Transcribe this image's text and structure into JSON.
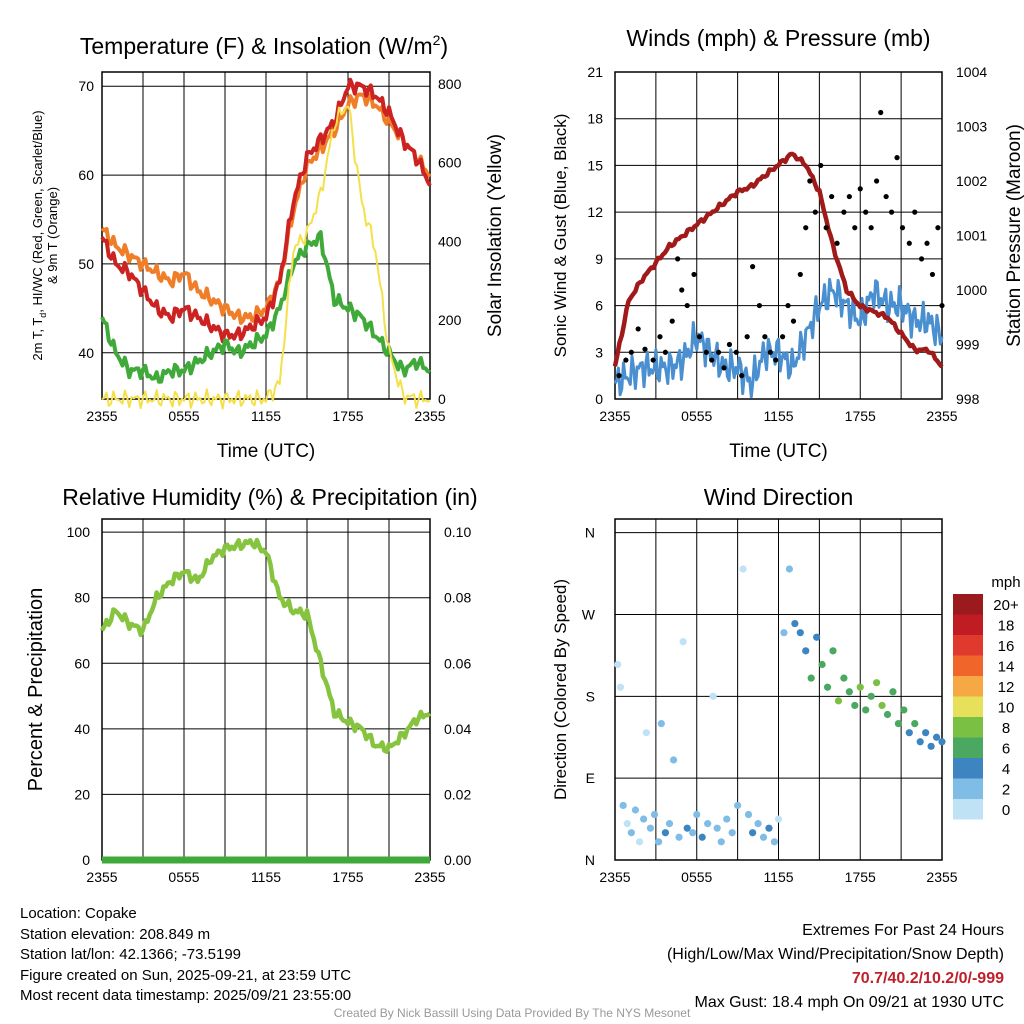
{
  "colors": {
    "temp": "#cc2222",
    "temp9m": "#f07d28",
    "dewpoint": "#3faa3a",
    "solar": "#f5e04a",
    "wind": "#4a90d0",
    "gust": "#000000",
    "pressure": "#a01a1a",
    "rh": "#86c440",
    "precip": "#3faa3a"
  },
  "x_ticks": [
    "2355",
    "0555",
    "1155",
    "1755",
    "2355"
  ],
  "chart_data": [
    {
      "type": "line",
      "id": "temp",
      "title": "Temperature (F) & Insolation (W/m",
      "title_sup": "2",
      "title_end": ")",
      "xlabel": "Time (UTC)",
      "ylabel_line1": "2m T, T",
      "ylabel_sub": "d",
      "ylabel_line1b": ", HI/WC (Red, Green, Scarlet/Blue)",
      "ylabel_line2": "& 9m T (Orange)",
      "y2label": "Solar Insolation (Yellow)",
      "xlim": [
        0,
        24
      ],
      "ylim": [
        34.8,
        71.6
      ],
      "y2lim": [
        0,
        830
      ],
      "yticks": [
        40,
        50,
        60,
        70
      ],
      "y2ticks": [
        0,
        200,
        400,
        600,
        800
      ],
      "series": [
        {
          "name": "9m T",
          "color_key": "temp9m",
          "axis": "y",
          "values": [
            54,
            52,
            51,
            50,
            49,
            48,
            49,
            47,
            46,
            45,
            44,
            44,
            45,
            48,
            56,
            61,
            63,
            65,
            68,
            69,
            68,
            66,
            64,
            62,
            60
          ]
        },
        {
          "name": "2m T",
          "color_key": "temp",
          "axis": "y",
          "values": [
            53,
            50,
            49,
            47,
            45,
            44,
            45,
            44,
            43,
            42,
            42,
            43,
            44,
            48,
            57,
            62,
            64,
            66,
            70,
            70,
            69,
            67,
            64,
            62,
            59
          ]
        },
        {
          "name": "Dewpoint",
          "color_key": "dewpoint",
          "axis": "y",
          "values": [
            44,
            40,
            38,
            38,
            37,
            38,
            38,
            39,
            40,
            41,
            40,
            41,
            42,
            45,
            50,
            52,
            53,
            46,
            45,
            44,
            42,
            40,
            38,
            39,
            38
          ]
        },
        {
          "name": "Solar Insolation",
          "color_key": "solar",
          "axis": "y2",
          "values": [
            0,
            0,
            0,
            0,
            0,
            0,
            0,
            0,
            0,
            0,
            0,
            0,
            0,
            40,
            380,
            420,
            520,
            700,
            750,
            500,
            380,
            120,
            10,
            0,
            0
          ]
        }
      ]
    },
    {
      "type": "line",
      "id": "wind",
      "title": "Winds (mph) & Pressure (mb)",
      "xlabel": "Time (UTC)",
      "ylabel": "Sonic Wind & Gust (Blue, Black)",
      "y2label": "Station Pressure (Maroon)",
      "xlim": [
        0,
        24
      ],
      "ylim": [
        0,
        21
      ],
      "y2lim": [
        998,
        1004
      ],
      "yticks": [
        0,
        3,
        6,
        9,
        12,
        15,
        18,
        21
      ],
      "y2ticks": [
        998,
        999,
        1000,
        1001,
        1002,
        1003,
        1004
      ],
      "series": [
        {
          "name": "Wind Speed",
          "color_key": "wind",
          "axis": "y",
          "values": [
            1,
            1.5,
            2,
            2,
            2,
            2.5,
            4,
            3,
            2,
            2,
            1,
            3,
            3,
            2,
            4,
            6,
            7,
            6,
            5,
            7,
            6,
            6,
            5,
            5,
            4
          ]
        },
        {
          "name": "Pressure",
          "color_key": "pressure",
          "axis": "y2",
          "values": [
            998.6,
            999.8,
            1000.2,
            1000.5,
            1000.8,
            1001.0,
            1001.2,
            1001.4,
            1001.6,
            1001.8,
            1001.9,
            1002.1,
            1002.3,
            1002.5,
            1002.3,
            1001.8,
            1000.8,
            1000.0,
            999.7,
            999.6,
            999.5,
            999.2,
            998.9,
            998.9,
            998.6
          ]
        }
      ],
      "gusts": [
        [
          0.3,
          1.5
        ],
        [
          0.8,
          2.5
        ],
        [
          1.2,
          3
        ],
        [
          1.7,
          4.5
        ],
        [
          2.2,
          3.2
        ],
        [
          2.8,
          2.5
        ],
        [
          3.3,
          4
        ],
        [
          3.7,
          3
        ],
        [
          4.2,
          5
        ],
        [
          4.6,
          9
        ],
        [
          4.9,
          7
        ],
        [
          5.3,
          6
        ],
        [
          5.8,
          8
        ],
        [
          6.2,
          4
        ],
        [
          6.7,
          3
        ],
        [
          7.1,
          2.5
        ],
        [
          7.6,
          3
        ],
        [
          8.0,
          2
        ],
        [
          8.4,
          3.5
        ],
        [
          8.9,
          3
        ],
        [
          9.3,
          1.5
        ],
        [
          9.7,
          4
        ],
        [
          10.1,
          8.5
        ],
        [
          10.6,
          6
        ],
        [
          11.0,
          4
        ],
        [
          11.4,
          3
        ],
        [
          11.8,
          2.5
        ],
        [
          12.3,
          4
        ],
        [
          12.7,
          6
        ],
        [
          13.1,
          5
        ],
        [
          13.6,
          8
        ],
        [
          14.0,
          11
        ],
        [
          14.3,
          14
        ],
        [
          14.7,
          12
        ],
        [
          15.1,
          15
        ],
        [
          15.5,
          11
        ],
        [
          15.9,
          13
        ],
        [
          16.3,
          10
        ],
        [
          16.8,
          12
        ],
        [
          17.2,
          13
        ],
        [
          17.6,
          11
        ],
        [
          18.0,
          13.5
        ],
        [
          18.4,
          12
        ],
        [
          18.8,
          11
        ],
        [
          19.2,
          14
        ],
        [
          19.5,
          18.4
        ],
        [
          19.9,
          13
        ],
        [
          20.3,
          12
        ],
        [
          20.7,
          15.5
        ],
        [
          21.1,
          11
        ],
        [
          21.6,
          10
        ],
        [
          22.0,
          12
        ],
        [
          22.5,
          9
        ],
        [
          22.9,
          10
        ],
        [
          23.3,
          8
        ],
        [
          23.7,
          11
        ],
        [
          24.0,
          6
        ]
      ]
    },
    {
      "type": "line",
      "id": "rh",
      "title": "Relative Humidity (%) & Precipitation (in)",
      "ylabel": "Percent & Precipitation",
      "xlim": [
        0,
        24
      ],
      "ylim": [
        0,
        104
      ],
      "y2lim": [
        0,
        0.104
      ],
      "yticks": [
        0,
        20,
        40,
        60,
        80,
        100
      ],
      "y2ticks": [
        "0.00",
        "0.02",
        "0.04",
        "0.06",
        "0.08",
        "0.10"
      ],
      "series": [
        {
          "name": "Relative Humidity",
          "color_key": "rh",
          "values": [
            70,
            76,
            72,
            70,
            80,
            85,
            88,
            85,
            92,
            95,
            96,
            97,
            94,
            80,
            76,
            75,
            60,
            45,
            42,
            40,
            35,
            34,
            38,
            43,
            45
          ]
        },
        {
          "name": "Precipitation",
          "color_key": "precip",
          "values": [
            0,
            0
          ]
        }
      ]
    },
    {
      "type": "scatter",
      "id": "dir",
      "title": "Wind Direction",
      "ylabel": "Direction (Colored By Speed)",
      "xlim": [
        0,
        24
      ],
      "ylim": [
        0,
        375
      ],
      "yticks": [
        {
          "v": 0,
          "l": "N"
        },
        {
          "v": 90,
          "l": "E"
        },
        {
          "v": 180,
          "l": "S"
        },
        {
          "v": 270,
          "l": "W"
        },
        {
          "v": 360,
          "l": "N"
        }
      ],
      "legend": {
        "title": "mph",
        "labels": [
          "20+",
          "18",
          "16",
          "14",
          "12",
          "10",
          "8",
          "6",
          "4",
          "2",
          "0"
        ],
        "colors": [
          "#9a1a1e",
          "#c01c24",
          "#e03a2e",
          "#f0652a",
          "#f6a845",
          "#e6e05a",
          "#7ac143",
          "#4aa860",
          "#3d85c0",
          "#7fbde6",
          "#bfe3f5"
        ]
      },
      "points": [
        [
          0.2,
          215,
          1
        ],
        [
          0.4,
          190,
          1
        ],
        [
          0.6,
          60,
          2
        ],
        [
          0.9,
          40,
          1
        ],
        [
          1.2,
          30,
          2
        ],
        [
          1.5,
          55,
          3
        ],
        [
          1.8,
          20,
          1
        ],
        [
          2.1,
          45,
          2
        ],
        [
          2.3,
          140,
          1
        ],
        [
          2.6,
          35,
          3
        ],
        [
          2.9,
          50,
          2
        ],
        [
          3.2,
          20,
          3
        ],
        [
          3.4,
          150,
          2
        ],
        [
          3.7,
          30,
          4
        ],
        [
          4.0,
          40,
          3
        ],
        [
          4.3,
          110,
          2
        ],
        [
          4.7,
          25,
          3
        ],
        [
          5.0,
          240,
          1
        ],
        [
          5.3,
          35,
          4
        ],
        [
          5.7,
          30,
          2
        ],
        [
          6.0,
          50,
          3
        ],
        [
          6.4,
          25,
          4
        ],
        [
          6.8,
          40,
          2
        ],
        [
          7.2,
          180,
          1
        ],
        [
          7.5,
          35,
          2
        ],
        [
          7.8,
          20,
          3
        ],
        [
          8.2,
          45,
          3
        ],
        [
          8.6,
          30,
          2
        ],
        [
          9.0,
          60,
          2
        ],
        [
          9.4,
          320,
          1
        ],
        [
          9.8,
          50,
          3
        ],
        [
          10.1,
          30,
          4
        ],
        [
          10.5,
          40,
          3
        ],
        [
          10.9,
          25,
          3
        ],
        [
          11.3,
          35,
          4
        ],
        [
          11.7,
          20,
          2
        ],
        [
          12.0,
          45,
          1
        ],
        [
          12.4,
          250,
          3
        ],
        [
          12.8,
          320,
          3
        ],
        [
          13.2,
          260,
          4
        ],
        [
          13.6,
          250,
          4
        ],
        [
          14.0,
          230,
          5
        ],
        [
          14.4,
          200,
          6
        ],
        [
          14.8,
          245,
          5
        ],
        [
          15.2,
          215,
          7
        ],
        [
          15.6,
          190,
          7
        ],
        [
          16.0,
          230,
          6
        ],
        [
          16.4,
          175,
          8
        ],
        [
          16.8,
          200,
          7
        ],
        [
          17.2,
          185,
          6
        ],
        [
          17.6,
          170,
          7
        ],
        [
          18.0,
          190,
          8
        ],
        [
          18.4,
          165,
          7
        ],
        [
          18.8,
          180,
          6
        ],
        [
          19.2,
          195,
          9
        ],
        [
          19.6,
          170,
          8
        ],
        [
          20.0,
          160,
          7
        ],
        [
          20.4,
          185,
          6
        ],
        [
          20.8,
          150,
          7
        ],
        [
          21.2,
          165,
          6
        ],
        [
          21.6,
          140,
          5
        ],
        [
          22.0,
          150,
          6
        ],
        [
          22.4,
          130,
          4
        ],
        [
          22.8,
          140,
          5
        ],
        [
          23.2,
          125,
          4
        ],
        [
          23.6,
          135,
          4
        ],
        [
          24.0,
          130,
          4
        ]
      ]
    }
  ],
  "footer": {
    "location": "Location: Copake",
    "elevation": "Station elevation: 208.849 m",
    "latlon": "Station lat/lon: 42.1366; -73.5199",
    "created": "Figure created on Sun, 2025-09-21, at 23:59 UTC",
    "recent": "Most recent data timestamp: 2025/09/21 23:55:00",
    "extremes_title": "Extremes For Past 24 Hours",
    "extremes_sub": "(High/Low/Max Wind/Precipitation/Snow Depth)",
    "extremes_values": "70.7/40.2/10.2/0/-999",
    "max_gust": "Max Gust: 18.4 mph On 09/21 at 1930 UTC",
    "credit": "Created By Nick Bassill Using Data Provided By The NYS Mesonet"
  }
}
